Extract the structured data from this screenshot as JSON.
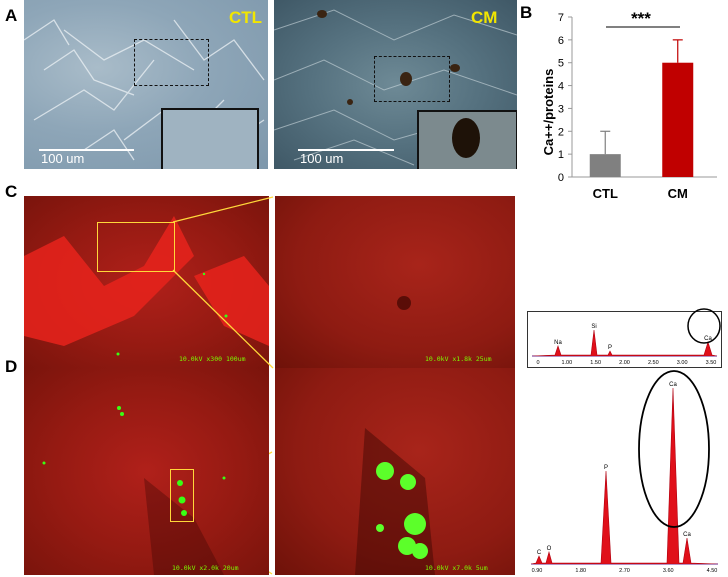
{
  "panels": {
    "a": {
      "label": "A",
      "left_tag": "CTL",
      "right_tag": "CM",
      "scale_left": "100 um",
      "scale_right": "100 um"
    },
    "b": {
      "label": "B"
    },
    "c": {
      "label": "C",
      "sem_left_text": "10.0kV x300  100um",
      "sem_right_text": "10.0kV x1.8k  25um"
    },
    "d": {
      "label": "D",
      "sem_left_text": "10.0kV x2.0k  20um",
      "sem_right_text": "10.0kV x7.0k  5um"
    }
  },
  "eds_c": {
    "peaks": [
      "Na",
      "Si",
      "P",
      "Ca"
    ],
    "ticks": [
      "0",
      "1.00",
      "1.50",
      "2.00",
      "2.50",
      "3.00",
      "3.50"
    ]
  },
  "eds_d": {
    "peaks": [
      "C",
      "O",
      "P",
      "Ca",
      "Ca"
    ],
    "ticks": [
      "0.90",
      "1.80",
      "2.70",
      "3.60",
      "4.50"
    ]
  },
  "chart_data": {
    "type": "bar",
    "categories": [
      "CTL",
      "CM"
    ],
    "values": [
      1,
      5
    ],
    "errors": [
      1,
      1
    ],
    "ylabel": "Ca++/proteins",
    "ylim": [
      0,
      7
    ],
    "yticks": [
      "0",
      "1",
      "2",
      "3",
      "4",
      "5",
      "6",
      "7"
    ],
    "significance": "***",
    "colors": [
      "#808080",
      "#c00000"
    ]
  }
}
